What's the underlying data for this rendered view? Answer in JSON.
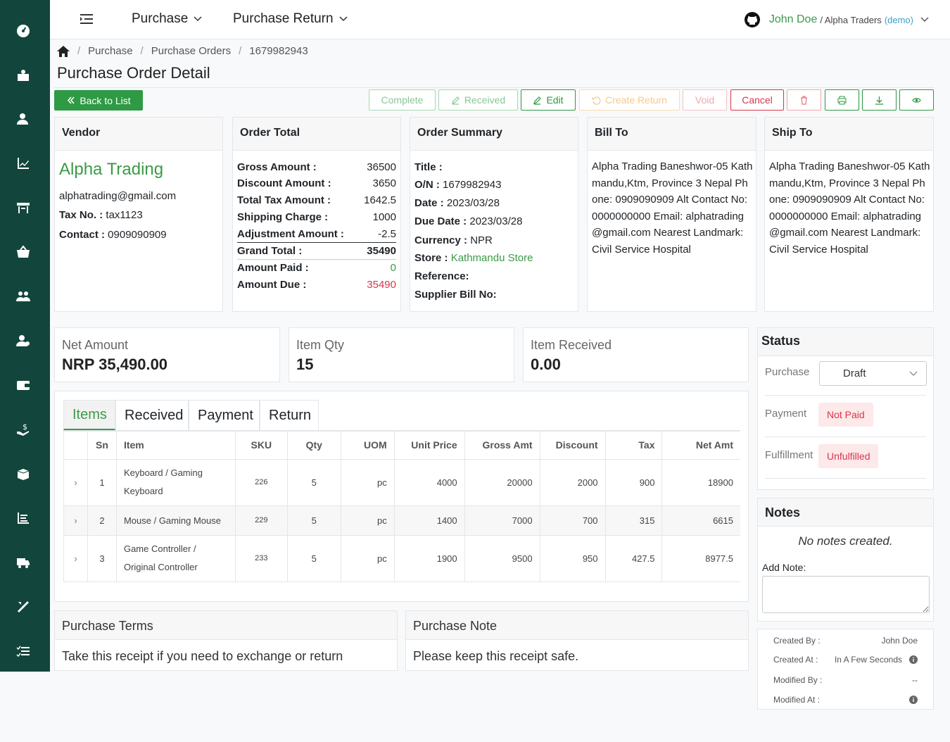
{
  "sidebar": {
    "icons": [
      "dashboard-icon",
      "product-icon",
      "user-icon",
      "chart-icon",
      "store-icon",
      "basket-icon",
      "users-icon",
      "account-icon",
      "wallet-icon",
      "payment-icon",
      "box-icon",
      "report-icon",
      "truck-icon",
      "tools-icon",
      "list-icon"
    ]
  },
  "topbar": {
    "menu1": "Purchase",
    "menu2": "Purchase Return",
    "user_name": "John Doe",
    "org": "/ Alpha Traders",
    "demo": "(demo)"
  },
  "breadcrumb": [
    "Purchase",
    "Purchase Orders",
    "1679982943"
  ],
  "page_title": "Purchase Order Detail",
  "toolbar": {
    "back": "Back to List",
    "complete": "Complete",
    "received": "Received",
    "edit": "Edit",
    "create_return": "Create Return",
    "void": "Void",
    "cancel": "Cancel"
  },
  "vendor": {
    "head": "Vendor",
    "name": "Alpha Trading",
    "email": "alphatrading@gmail.com",
    "tax_label": "Tax No. :",
    "tax": "tax1123",
    "contact_label": "Contact :",
    "contact": "0909090909"
  },
  "order_total": {
    "head": "Order Total",
    "rows": [
      {
        "label": "Gross Amount :",
        "value": "36500"
      },
      {
        "label": "Discount Amount :",
        "value": "3650"
      },
      {
        "label": "Total Tax Amount :",
        "value": "1642.5"
      },
      {
        "label": "Shipping Charge :",
        "value": "1000"
      },
      {
        "label": "Adjustment Amount :",
        "value": "-2.5"
      },
      {
        "label": "Grand Total :",
        "value": "35490"
      },
      {
        "label": "Amount Paid :",
        "value": "0"
      },
      {
        "label": "Amount Due :",
        "value": "35490"
      }
    ]
  },
  "summary": {
    "head": "Order Summary",
    "title_label": "Title :",
    "on_label": "O/N :",
    "on": "1679982943",
    "date_label": "Date :",
    "date": "2023/03/28",
    "due_label": "Due Date :",
    "due": "2023/03/28",
    "currency_label": "Currency :",
    "currency": "NPR",
    "store_label": "Store :",
    "store": "Kathmandu Store",
    "ref_label": "Reference:",
    "bill_label": "Supplier Bill No:"
  },
  "bill_to": {
    "head": "Bill To",
    "text": "Alpha Trading Baneshwor-05 Kathmandu,Ktm, Province 3 Nepal Phone: 0909090909 Alt Contact No: 0000000000 Email: alphatrading@gmail.com Nearest Landmark: Civil Service Hospital"
  },
  "ship_to": {
    "head": "Ship To",
    "text": "Alpha Trading Baneshwor-05 Kathmandu,Ktm, Province 3 Nepal Phone: 0909090909 Alt Contact No: 0000000000 Email: alphatrading@gmail.com Nearest Landmark: Civil Service Hospital"
  },
  "stats": [
    {
      "label": "Net Amount",
      "value": "NRP 35,490.00"
    },
    {
      "label": "Item Qty",
      "value": "15"
    },
    {
      "label": "Item Received",
      "value": "0.00"
    }
  ],
  "tabs": [
    "Items",
    "Received",
    "Payment",
    "Return"
  ],
  "table": {
    "headers": [
      "Sn",
      "Item",
      "SKU",
      "Qty",
      "UOM",
      "Unit Price",
      "Gross Amt",
      "Discount",
      "Tax",
      "Net Amt"
    ],
    "rows": [
      {
        "sn": "1",
        "item": "Keyboard / Gaming Keyboard",
        "sku": "226",
        "qty": "5",
        "uom": "pc",
        "unit": "4000",
        "gross": "20000",
        "disc": "2000",
        "tax": "900",
        "net": "18900"
      },
      {
        "sn": "2",
        "item": "Mouse / Gaming Mouse",
        "sku": "229",
        "qty": "5",
        "uom": "pc",
        "unit": "1400",
        "gross": "7000",
        "disc": "700",
        "tax": "315",
        "net": "6615"
      },
      {
        "sn": "3",
        "item": "Game Controller / Original Controller",
        "sku": "233",
        "qty": "5",
        "uom": "pc",
        "unit": "1900",
        "gross": "9500",
        "disc": "950",
        "tax": "427.5",
        "net": "8977.5"
      }
    ]
  },
  "status": {
    "head": "Status",
    "purchase_label": "Purchase",
    "purchase_value": "Draft",
    "payment_label": "Payment",
    "payment_value": "Not Paid",
    "fulfill_label": "Fulfillment",
    "fulfill_value": "Unfulfilled"
  },
  "notes": {
    "head": "Notes",
    "empty": "No notes created.",
    "add_label": "Add Note:"
  },
  "meta": {
    "created_by_label": "Created By :",
    "created_by": "John Doe",
    "created_at_label": "Created At :",
    "created_at": "In A Few Seconds",
    "modified_by_label": "Modified By :",
    "modified_by": "--",
    "modified_at_label": "Modified At :"
  },
  "terms": {
    "head": "Purchase Terms",
    "body": "Take this receipt if you need to exchange or return"
  },
  "pnote": {
    "head": "Purchase Note",
    "body": "Please keep this receipt safe."
  },
  "colors": {
    "sidebar": "#12463c",
    "green": "#3b9a47",
    "red": "#d9364a"
  }
}
